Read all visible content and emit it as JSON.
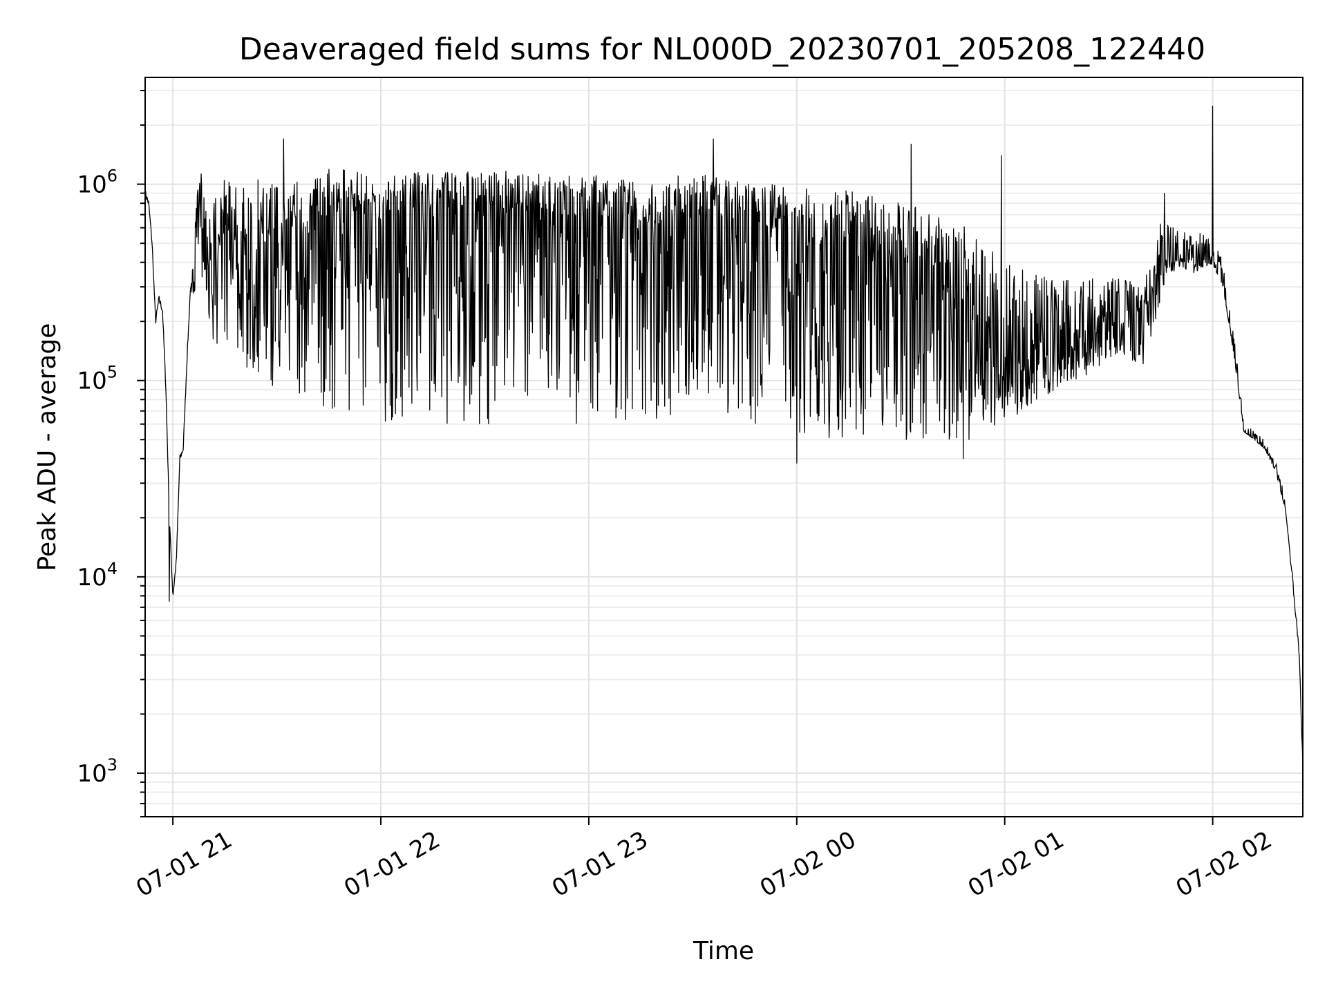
{
  "chart_data": {
    "type": "line",
    "title": "Deaveraged field sums for NL000D_20230701_205208_122440",
    "xlabel": "Time",
    "ylabel": "Peak ADU - average",
    "yscale": "log",
    "xlim": [
      "2023-07-01 20:52",
      "2023-07-02 02:26"
    ],
    "ylim": [
      600,
      3500000
    ],
    "grid": "both",
    "x_ticks": [
      {
        "value": "2023-07-01 21:00",
        "label": "07-01 21"
      },
      {
        "value": "2023-07-01 22:00",
        "label": "07-01 22"
      },
      {
        "value": "2023-07-01 23:00",
        "label": "07-01 23"
      },
      {
        "value": "2023-07-02 00:00",
        "label": "07-02 00"
      },
      {
        "value": "2023-07-02 01:00",
        "label": "07-02 01"
      },
      {
        "value": "2023-07-02 02:00",
        "label": "07-02 02"
      }
    ],
    "y_ticks": [
      {
        "value": 1000,
        "base": "10",
        "exp": "3"
      },
      {
        "value": 10000,
        "base": "10",
        "exp": "4"
      },
      {
        "value": 100000,
        "base": "10",
        "exp": "5"
      },
      {
        "value": 1000000,
        "base": "10",
        "exp": "6"
      }
    ],
    "series_color": "#000000",
    "x": [
      "2023-07-01 20:52",
      "2023-07-01 20:53",
      "2023-07-01 20:54",
      "2023-07-01 20:55",
      "2023-07-01 20:56",
      "2023-07-01 20:57",
      "2023-07-01 20:58",
      "2023-07-01 20:59",
      "2023-07-01 21:00",
      "2023-07-01 21:01",
      "2023-07-01 21:02",
      "2023-07-01 21:03",
      "2023-07-01 21:04",
      "2023-07-01 21:05",
      "2023-07-01 21:06",
      "2023-07-01 21:07",
      "2023-07-01 21:08",
      "2023-07-01 21:09",
      "2023-07-01 21:10",
      "2023-07-01 21:12",
      "2023-07-01 21:15",
      "2023-07-01 21:20",
      "2023-07-01 21:25",
      "2023-07-01 21:30",
      "2023-07-01 21:35",
      "2023-07-01 21:40",
      "2023-07-01 21:45",
      "2023-07-01 21:50",
      "2023-07-01 21:55",
      "2023-07-01 22:00",
      "2023-07-01 22:10",
      "2023-07-01 22:20",
      "2023-07-01 22:30",
      "2023-07-01 22:40",
      "2023-07-01 22:50",
      "2023-07-01 23:00",
      "2023-07-01 23:10",
      "2023-07-01 23:20",
      "2023-07-01 23:30",
      "2023-07-01 23:40",
      "2023-07-01 23:50",
      "2023-07-02 00:00",
      "2023-07-02 00:10",
      "2023-07-02 00:20",
      "2023-07-02 00:30",
      "2023-07-02 00:40",
      "2023-07-02 00:50",
      "2023-07-02 01:00",
      "2023-07-02 01:10",
      "2023-07-02 01:20",
      "2023-07-02 01:30",
      "2023-07-02 01:35",
      "2023-07-02 01:40",
      "2023-07-02 01:45",
      "2023-07-02 01:50",
      "2023-07-02 01:55",
      "2023-07-02 02:00",
      "2023-07-02 02:03",
      "2023-07-02 02:06",
      "2023-07-02 02:09",
      "2023-07-02 02:12",
      "2023-07-02 02:15",
      "2023-07-02 02:18",
      "2023-07-02 02:21",
      "2023-07-02 02:23",
      "2023-07-02 02:25",
      "2023-07-02 02:26"
    ],
    "values": [
      900000,
      800000,
      500000,
      200000,
      260000,
      230000,
      90000,
      20000,
      8000,
      12000,
      40000,
      45000,
      120000,
      280000,
      400000,
      600000,
      800000,
      550000,
      420000,
      450000,
      600000,
      500000,
      550000,
      520000,
      600000,
      650000,
      700000,
      750000,
      700000,
      650000,
      700000,
      750000,
      700000,
      720000,
      650000,
      700000,
      650000,
      600000,
      680000,
      620000,
      600000,
      550000,
      500000,
      450000,
      400000,
      300000,
      250000,
      100000,
      130000,
      160000,
      180000,
      200000,
      190000,
      350000,
      450000,
      400000,
      430000,
      300000,
      140000,
      55000,
      50000,
      45000,
      35000,
      22000,
      10000,
      4000,
      1100
    ],
    "noise_band": {
      "lower": [
        900000,
        800000,
        500000,
        200000,
        260000,
        230000,
        90000,
        20000,
        8000,
        12000,
        40000,
        45000,
        120000,
        280000,
        250000,
        250000,
        350000,
        300000,
        200000,
        150000,
        150000,
        120000,
        100000,
        90000,
        80000,
        80000,
        70000,
        70000,
        65000,
        60000,
        60000,
        60000,
        60000,
        60000,
        60000,
        60000,
        60000,
        60000,
        60000,
        60000,
        60000,
        55000,
        50000,
        50000,
        50000,
        50000,
        50000,
        60000,
        80000,
        100000,
        120000,
        130000,
        120000,
        250000,
        380000,
        350000,
        380000,
        300000,
        140000,
        55000,
        50000,
        45000,
        35000,
        22000,
        10000,
        4000,
        1100
      ],
      "upper": [
        900000,
        800000,
        500000,
        200000,
        260000,
        230000,
        90000,
        20000,
        8000,
        12000,
        40000,
        45000,
        120000,
        280000,
        500000,
        900000,
        1200000,
        1000000,
        900000,
        1000000,
        1100000,
        1000000,
        1100000,
        1050000,
        1100000,
        1150000,
        1200000,
        1200000,
        1150000,
        1100000,
        1150000,
        1200000,
        1150000,
        1200000,
        1100000,
        1150000,
        1100000,
        1050000,
        1150000,
        1050000,
        1000000,
        1000000,
        950000,
        900000,
        850000,
        700000,
        600000,
        400000,
        350000,
        330000,
        330000,
        330000,
        300000,
        650000,
        600000,
        550000,
        600000,
        400000,
        180000,
        60000,
        55000,
        50000,
        40000,
        25000,
        10000,
        4000,
        1100
      ]
    },
    "spikes": [
      {
        "x": "2023-07-01 21:32",
        "value": 1700000
      },
      {
        "x": "2023-07-01 23:36",
        "value": 1700000
      },
      {
        "x": "2023-07-02 00:33",
        "value": 1600000
      },
      {
        "x": "2023-07-02 00:59",
        "value": 1400000
      },
      {
        "x": "2023-07-02 01:46",
        "value": 900000
      },
      {
        "x": "2023-07-02 02:00",
        "value": 2500000
      },
      {
        "x": "2023-07-01 20:59",
        "value": 7500
      },
      {
        "x": "2023-07-02 00:00",
        "value": 38000
      },
      {
        "x": "2023-07-02 00:48",
        "value": 40000
      }
    ]
  }
}
